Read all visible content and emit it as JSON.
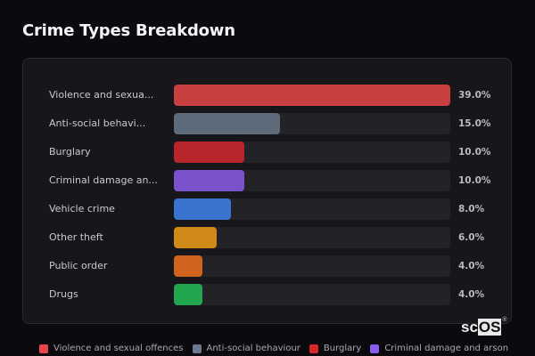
{
  "title": "Crime Types Breakdown",
  "chart_data": {
    "type": "bar",
    "orientation": "horizontal",
    "title": "Crime Types Breakdown",
    "categories": [
      "Violence and sexual offences",
      "Anti-social behaviour",
      "Burglary",
      "Criminal damage and arson",
      "Vehicle crime",
      "Other theft",
      "Public order",
      "Drugs"
    ],
    "values": [
      39.0,
      15.0,
      10.0,
      10.0,
      8.0,
      6.0,
      4.0,
      4.0
    ],
    "unit": "%",
    "max": 39.0
  },
  "rows": [
    {
      "label": "Violence and sexua...",
      "pct": "39.0%",
      "value": 39.0,
      "color": "#c94040"
    },
    {
      "label": "Anti-social behavi...",
      "pct": "15.0%",
      "value": 15.0,
      "color": "#5e6b7a"
    },
    {
      "label": "Burglary",
      "pct": "10.0%",
      "value": 10.0,
      "color": "#b8262b"
    },
    {
      "label": "Criminal damage an...",
      "pct": "10.0%",
      "value": 10.0,
      "color": "#7a52cc"
    },
    {
      "label": "Vehicle crime",
      "pct": "8.0%",
      "value": 8.0,
      "color": "#3a74d0"
    },
    {
      "label": "Other theft",
      "pct": "6.0%",
      "value": 6.0,
      "color": "#d08a18"
    },
    {
      "label": "Public order",
      "pct": "4.0%",
      "value": 4.0,
      "color": "#d0641c"
    },
    {
      "label": "Drugs",
      "pct": "4.0%",
      "value": 4.0,
      "color": "#22a54f"
    }
  ],
  "legend": [
    {
      "label": "Violence and sexual offences",
      "color": "#e8454a"
    },
    {
      "label": "Anti-social behaviour",
      "color": "#6b7890"
    },
    {
      "label": "Burglary",
      "color": "#d9252b"
    },
    {
      "label": "Criminal damage and arson",
      "color": "#8a5cf0"
    }
  ],
  "logo": {
    "sc": "sc",
    "os": "OS",
    "reg": "®"
  }
}
